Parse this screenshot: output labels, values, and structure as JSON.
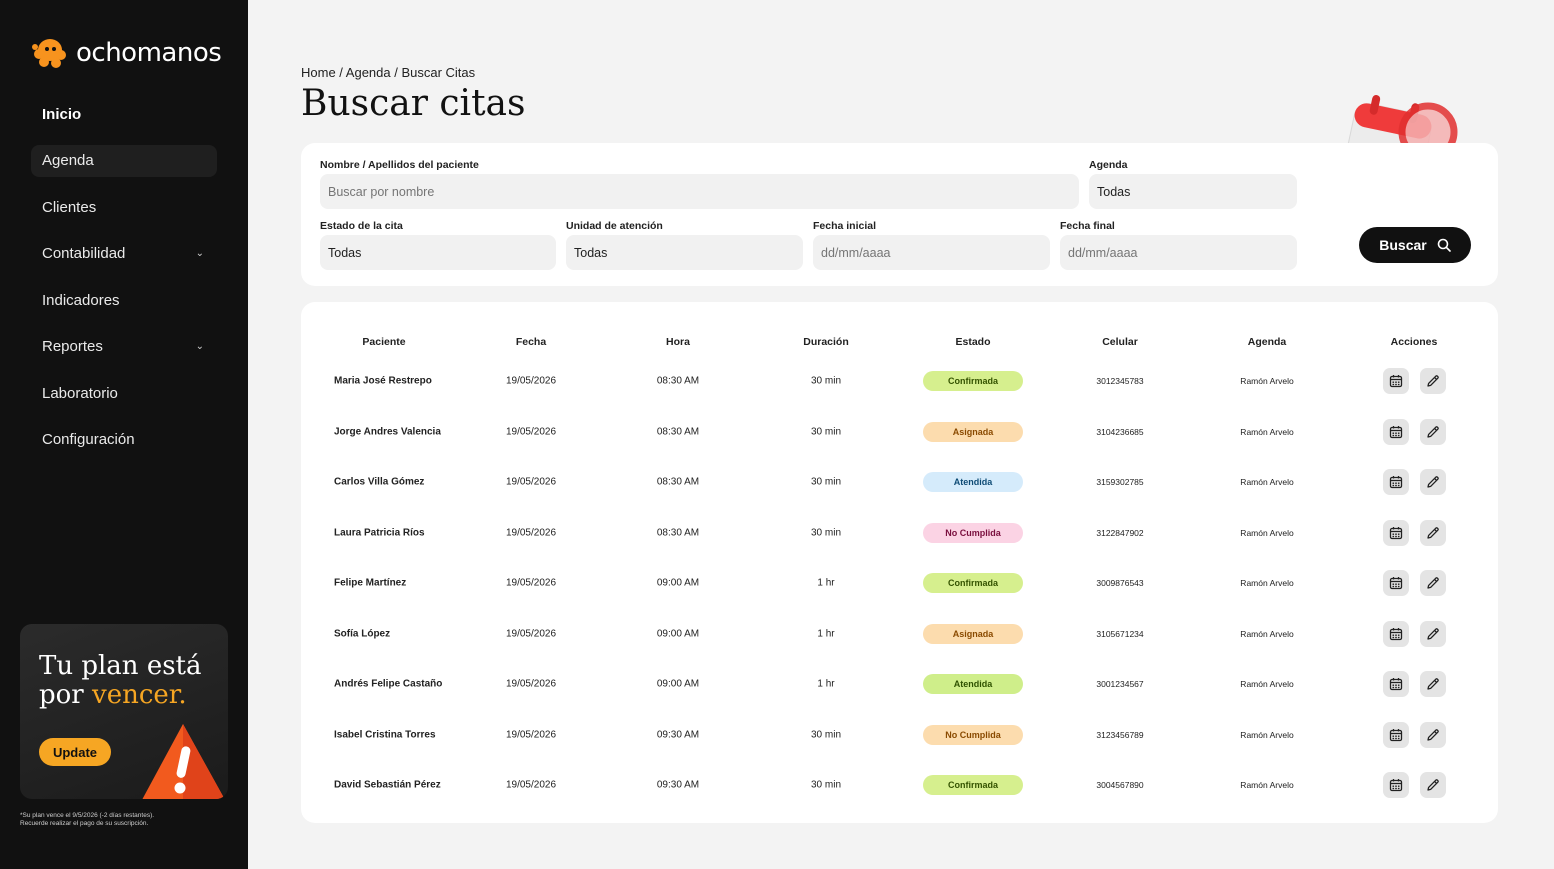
{
  "brand": {
    "name": "ochomanos",
    "accent": "#f6a623"
  },
  "sidebar": {
    "items": [
      {
        "label": "Inicio"
      },
      {
        "label": "Agenda"
      },
      {
        "label": "Clientes"
      },
      {
        "label": "Contabilidad"
      },
      {
        "label": "Indicadores"
      },
      {
        "label": "Reportes"
      },
      {
        "label": "Laboratorio"
      },
      {
        "label": "Configuración"
      }
    ],
    "plan": {
      "title_line1": "Tu plan está",
      "title_line2_prefix": "por ",
      "title_line2_highlight": "vencer.",
      "button": "Update",
      "note_line1": "*Su plan vence el 9/5/2026 (-2 días restantes).",
      "note_line2": "Recuerde realizar el pago de su suscripción."
    }
  },
  "breadcrumb": "Home / Agenda / Buscar Citas",
  "page_title": "Buscar citas",
  "filters": {
    "name_label": "Nombre / Apellidos del paciente",
    "name_placeholder": "Buscar por nombre",
    "agenda_label": "Agenda",
    "agenda_value": "Todas",
    "estado_label": "Estado de la cita",
    "estado_value": "Todas",
    "unidad_label": "Unidad de atención",
    "unidad_value": "Todas",
    "fecha_inicial_label": "Fecha inicial",
    "fecha_inicial_placeholder": "dd/mm/aaaa",
    "fecha_final_label": "Fecha final",
    "fecha_final_placeholder": "dd/mm/aaaa",
    "search_button": "Buscar"
  },
  "table": {
    "headers": {
      "paciente": "Paciente",
      "fecha": "Fecha",
      "hora": "Hora",
      "duracion": "Duración",
      "estado": "Estado",
      "celular": "Celular",
      "agenda": "Agenda",
      "acciones": "Acciones"
    },
    "rows": [
      {
        "paciente": "Maria José Restrepo",
        "fecha": "19/05/2026",
        "hora": "08:30 AM",
        "duracion": "30 min",
        "estado": "Confirmada",
        "celular": "3012345783",
        "agenda": "Ramón Arvelo"
      },
      {
        "paciente": "Jorge Andres Valencia",
        "fecha": "19/05/2026",
        "hora": "08:30 AM",
        "duracion": "30 min",
        "estado": "Asignada",
        "celular": "3104236685",
        "agenda": "Ramón Arvelo"
      },
      {
        "paciente": "Carlos Villa Gómez",
        "fecha": "19/05/2026",
        "hora": "08:30 AM",
        "duracion": "30 min",
        "estado": "Atendida",
        "celular": "3159302785",
        "agenda": "Ramón Arvelo"
      },
      {
        "paciente": "Laura Patricia Ríos",
        "fecha": "19/05/2026",
        "hora": "08:30 AM",
        "duracion": "30 min",
        "estado": "No Cumplida",
        "celular": "3122847902",
        "agenda": "Ramón Arvelo"
      },
      {
        "paciente": "Felipe Martínez",
        "fecha": "19/05/2026",
        "hora": "09:00 AM",
        "duracion": "1 hr",
        "estado": "Confirmada",
        "celular": "3009876543",
        "agenda": "Ramón Arvelo"
      },
      {
        "paciente": "Sofía López",
        "fecha": "19/05/2026",
        "hora": "09:00 AM",
        "duracion": "1 hr",
        "estado": "Asignada",
        "celular": "3105671234",
        "agenda": "Ramón Arvelo"
      },
      {
        "paciente": "Andrés Felipe Castaño",
        "fecha": "19/05/2026",
        "hora": "09:00 AM",
        "duracion": "1 hr",
        "estado": "Atendida",
        "celular": "3001234567",
        "agenda": "Ramón Arvelo"
      },
      {
        "paciente": "Isabel Cristina Torres",
        "fecha": "19/05/2026",
        "hora": "09:30 AM",
        "duracion": "30 min",
        "estado": "No Cumplida",
        "celular": "3123456789",
        "agenda": "Ramón Arvelo"
      },
      {
        "paciente": "David Sebastián Pérez",
        "fecha": "19/05/2026",
        "hora": "09:30 AM",
        "duracion": "30 min",
        "estado": "Confirmada",
        "celular": "3004567890",
        "agenda": "Ramón Arvelo"
      }
    ]
  }
}
